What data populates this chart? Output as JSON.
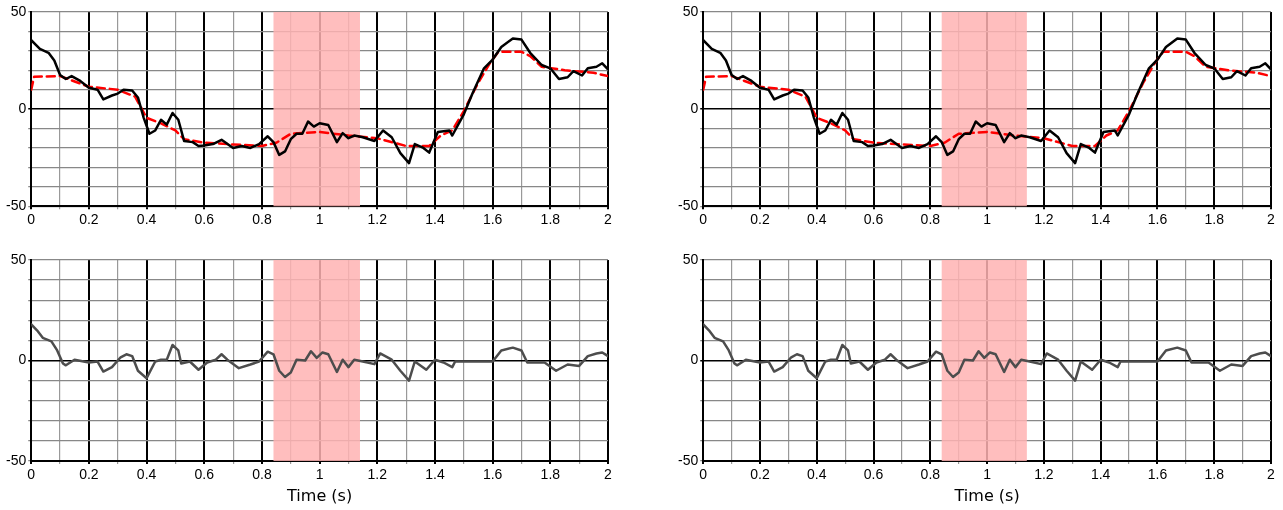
{
  "chart_data": [
    {
      "type": "line",
      "xlim": [
        0,
        2
      ],
      "ylim": [
        -50,
        50
      ],
      "xticks": [
        0,
        {
          "value": 0.1,
          "label": null
        },
        0.2,
        {
          "value": 0.3,
          "label": null
        },
        0.4,
        {
          "value": 0.5,
          "label": null
        },
        0.6,
        {
          "value": 0.7,
          "label": null
        },
        0.8,
        {
          "value": 0.9,
          "label": null
        },
        1,
        {
          "value": 1.1,
          "label": null
        },
        1.2,
        {
          "value": 1.3,
          "label": null
        },
        1.4,
        {
          "value": 1.5,
          "label": null
        },
        1.6,
        {
          "value": 1.7,
          "label": null
        },
        1.8,
        {
          "value": 1.9,
          "label": null
        },
        2
      ],
      "yticks": [
        -50,
        {
          "value": -40,
          "label": null
        },
        {
          "value": -30,
          "label": null
        },
        {
          "value": -20,
          "label": null
        },
        {
          "value": -10,
          "label": null
        },
        0,
        {
          "value": 10,
          "label": null
        },
        {
          "value": 20,
          "label": null
        },
        {
          "value": 30,
          "label": null
        },
        {
          "value": 40,
          "label": null
        },
        50
      ],
      "grid": true,
      "legend": false,
      "marker": "none",
      "bands": [
        {
          "axis": "x",
          "from": 0.84,
          "to": 1.14,
          "color": "#ffb3b3"
        }
      ],
      "series": [
        {
          "color": "#000000",
          "line_style": "solid",
          "x": [
            0,
            0.03,
            0.06,
            0.08,
            0.1,
            0.12,
            0.14,
            0.17,
            0.2,
            0.23,
            0.25,
            0.28,
            0.3,
            0.32,
            0.35,
            0.37,
            0.39,
            0.41,
            0.43,
            0.45,
            0.47,
            0.49,
            0.51,
            0.53,
            0.56,
            0.58,
            0.6,
            0.63,
            0.66,
            0.7,
            0.73,
            0.76,
            0.79,
            0.82,
            0.84,
            0.86,
            0.88,
            0.9,
            0.92,
            0.94,
            0.96,
            0.98,
            1,
            1.03,
            1.06,
            1.08,
            1.1,
            1.12,
            1.15,
            1.19,
            1.22,
            1.25,
            1.28,
            1.31,
            1.33,
            1.36,
            1.38,
            1.41,
            1.45,
            1.46,
            1.5,
            1.53,
            1.57,
            1.6,
            1.63,
            1.67,
            1.7,
            1.73,
            1.77,
            1.8,
            1.83,
            1.86,
            1.88,
            1.91,
            1.93,
            1.96,
            1.98,
            2
          ],
          "values": [
            35.5,
            31,
            29,
            25,
            17.6,
            15.5,
            17,
            14.5,
            11,
            10,
            5,
            7,
            8,
            10,
            9.6,
            6,
            -4.5,
            -12.7,
            -11,
            -5.5,
            -8,
            -2,
            -5.5,
            -16.4,
            -17,
            -19,
            -18.7,
            -18,
            -15.8,
            -20,
            -19,
            -20,
            -18,
            -14,
            -17,
            -23.6,
            -21.8,
            -15.5,
            -12.7,
            -12.7,
            -6.4,
            -9,
            -7.3,
            -8.2,
            -17,
            -12.4,
            -15,
            -13.6,
            -14.5,
            -16.4,
            -11,
            -14.5,
            -22.7,
            -27.8,
            -18,
            -20,
            -22.4,
            -11.8,
            -11,
            -13.6,
            -2.7,
            8,
            21,
            25.5,
            32,
            36.4,
            35.8,
            29,
            22.7,
            21,
            15.5,
            16.4,
            19.5,
            17.3,
            21,
            21.8,
            23.6,
            20.5
          ]
        },
        {
          "color": "#ff0000",
          "line_style": "dashed",
          "x": [
            0,
            0.01,
            0.1,
            0.2,
            0.3,
            0.36,
            0.38,
            0.4,
            0.45,
            0.5,
            0.53,
            0.6,
            0.7,
            0.8,
            0.85,
            0.9,
            1,
            1.1,
            1.2,
            1.3,
            1.38,
            1.42,
            1.46,
            1.5,
            1.55,
            1.59,
            1.62,
            1.7,
            1.73,
            1.77,
            1.85,
            1.95,
            2
          ],
          "values": [
            10,
            16.7,
            17,
            11.5,
            10,
            6.4,
            1,
            -4.5,
            -7.3,
            -11,
            -15.5,
            -17.3,
            -18.2,
            -19,
            -17.3,
            -12.7,
            -11.8,
            -13.6,
            -15,
            -19,
            -19,
            -13.6,
            -11,
            -1,
            13.6,
            23.6,
            29.5,
            29.5,
            27.3,
            21.8,
            20,
            18.7,
            17
          ]
        }
      ]
    },
    {
      "type": "line",
      "xlim": [
        0,
        2
      ],
      "ylim": [
        -50,
        50
      ],
      "xticks": [
        0,
        {
          "value": 0.1,
          "label": null
        },
        0.2,
        {
          "value": 0.3,
          "label": null
        },
        0.4,
        {
          "value": 0.5,
          "label": null
        },
        0.6,
        {
          "value": 0.7,
          "label": null
        },
        0.8,
        {
          "value": 0.9,
          "label": null
        },
        1,
        {
          "value": 1.1,
          "label": null
        },
        1.2,
        {
          "value": 1.3,
          "label": null
        },
        1.4,
        {
          "value": 1.5,
          "label": null
        },
        1.6,
        {
          "value": 1.7,
          "label": null
        },
        1.8,
        {
          "value": 1.9,
          "label": null
        },
        2
      ],
      "yticks": [
        -50,
        {
          "value": -40,
          "label": null
        },
        {
          "value": -30,
          "label": null
        },
        {
          "value": -20,
          "label": null
        },
        {
          "value": -10,
          "label": null
        },
        0,
        {
          "value": 10,
          "label": null
        },
        {
          "value": 20,
          "label": null
        },
        {
          "value": 30,
          "label": null
        },
        {
          "value": 40,
          "label": null
        },
        50
      ],
      "grid": true,
      "legend": false,
      "marker": "none",
      "bands": [
        {
          "axis": "x",
          "from": 0.84,
          "to": 1.14,
          "color": "#ffb3b3"
        }
      ],
      "series": [
        {
          "color": "#000000",
          "line_style": "solid",
          "x": [
            0,
            0.03,
            0.06,
            0.08,
            0.1,
            0.12,
            0.14,
            0.17,
            0.2,
            0.23,
            0.25,
            0.28,
            0.3,
            0.32,
            0.35,
            0.37,
            0.39,
            0.41,
            0.43,
            0.45,
            0.47,
            0.49,
            0.51,
            0.53,
            0.56,
            0.58,
            0.6,
            0.63,
            0.66,
            0.7,
            0.73,
            0.76,
            0.79,
            0.82,
            0.84,
            0.86,
            0.88,
            0.9,
            0.92,
            0.94,
            0.96,
            0.98,
            1,
            1.03,
            1.06,
            1.08,
            1.1,
            1.12,
            1.15,
            1.19,
            1.22,
            1.25,
            1.28,
            1.31,
            1.33,
            1.36,
            1.38,
            1.41,
            1.45,
            1.46,
            1.5,
            1.53,
            1.57,
            1.6,
            1.63,
            1.67,
            1.7,
            1.73,
            1.77,
            1.8,
            1.83,
            1.86,
            1.88,
            1.91,
            1.93,
            1.96,
            1.98,
            2
          ],
          "values": [
            35.5,
            31,
            29,
            25,
            17.6,
            15.5,
            17,
            14.5,
            11,
            10,
            5,
            7,
            8,
            10,
            9.6,
            6,
            -4.5,
            -12.7,
            -11,
            -5.5,
            -8,
            -2,
            -5.5,
            -16.4,
            -17,
            -19,
            -18.7,
            -18,
            -15.8,
            -20,
            -19,
            -20,
            -18,
            -14,
            -17,
            -23.6,
            -21.8,
            -15.5,
            -12.7,
            -12.7,
            -6.4,
            -9,
            -7.3,
            -8.2,
            -17,
            -12.4,
            -15,
            -13.6,
            -14.5,
            -16.4,
            -11,
            -14.5,
            -22.7,
            -27.8,
            -18,
            -20,
            -22.4,
            -11.8,
            -11,
            -13.6,
            -2.7,
            8,
            21,
            25.5,
            32,
            36.4,
            35.8,
            29,
            22.7,
            21,
            15.5,
            16.4,
            19.5,
            17.3,
            21,
            21.8,
            23.6,
            20.5
          ]
        },
        {
          "color": "#ff0000",
          "line_style": "dashed",
          "x": [
            0,
            0.01,
            0.1,
            0.2,
            0.3,
            0.36,
            0.38,
            0.4,
            0.45,
            0.5,
            0.53,
            0.6,
            0.7,
            0.8,
            0.85,
            0.9,
            1,
            1.1,
            1.2,
            1.3,
            1.38,
            1.42,
            1.46,
            1.5,
            1.55,
            1.59,
            1.62,
            1.7,
            1.73,
            1.77,
            1.85,
            1.95,
            2
          ],
          "values": [
            10,
            16.7,
            17,
            11.5,
            10,
            6.4,
            1,
            -4.5,
            -7.3,
            -11,
            -15.5,
            -17.3,
            -18.2,
            -19,
            -17.3,
            -12.7,
            -11.8,
            -13.6,
            -15,
            -19,
            -19,
            -13.6,
            -11,
            -1,
            13.6,
            23.6,
            29.5,
            29.5,
            27.3,
            21.8,
            20,
            18.7,
            17
          ]
        }
      ]
    },
    {
      "type": "line",
      "xlabel": "Time (s)",
      "xlim": [
        0,
        2
      ],
      "ylim": [
        -50,
        50
      ],
      "xticks": [
        0,
        {
          "value": 0.1,
          "label": null
        },
        0.2,
        {
          "value": 0.3,
          "label": null
        },
        0.4,
        {
          "value": 0.5,
          "label": null
        },
        0.6,
        {
          "value": 0.7,
          "label": null
        },
        0.8,
        {
          "value": 0.9,
          "label": null
        },
        1,
        {
          "value": 1.1,
          "label": null
        },
        1.2,
        {
          "value": 1.3,
          "label": null
        },
        1.4,
        {
          "value": 1.5,
          "label": null
        },
        1.6,
        {
          "value": 1.7,
          "label": null
        },
        1.8,
        {
          "value": 1.9,
          "label": null
        },
        2
      ],
      "yticks": [
        -50,
        {
          "value": -40,
          "label": null
        },
        {
          "value": -30,
          "label": null
        },
        {
          "value": -20,
          "label": null
        },
        {
          "value": -10,
          "label": null
        },
        0,
        {
          "value": 10,
          "label": null
        },
        {
          "value": 20,
          "label": null
        },
        {
          "value": 30,
          "label": null
        },
        {
          "value": 40,
          "label": null
        },
        50
      ],
      "grid": true,
      "legend": false,
      "marker": "none",
      "bands": [
        {
          "axis": "x",
          "from": 0.84,
          "to": 1.14,
          "color": "#ffb3b3"
        }
      ],
      "series": [
        {
          "color": "#4d4d4d",
          "line_style": "solid",
          "x": [
            0,
            0.02,
            0.04,
            0.07,
            0.09,
            0.11,
            0.12,
            0.15,
            0.2,
            0.23,
            0.25,
            0.28,
            0.31,
            0.33,
            0.35,
            0.37,
            0.4,
            0.43,
            0.45,
            0.47,
            0.49,
            0.51,
            0.52,
            0.55,
            0.58,
            0.61,
            0.64,
            0.66,
            0.68,
            0.72,
            0.76,
            0.79,
            0.82,
            0.84,
            0.86,
            0.88,
            0.9,
            0.92,
            0.95,
            0.97,
            0.99,
            1.01,
            1.03,
            1.06,
            1.08,
            1.1,
            1.12,
            1.15,
            1.19,
            1.21,
            1.25,
            1.28,
            1.31,
            1.33,
            1.37,
            1.4,
            1.43,
            1.46,
            1.47,
            1.6,
            1.63,
            1.67,
            1.7,
            1.72,
            1.78,
            1.82,
            1.86,
            1.9,
            1.93,
            1.96,
            1.98,
            2
          ],
          "values": [
            18,
            15,
            11.3,
            9.5,
            5,
            -1.5,
            -2.4,
            0.4,
            -1,
            -0.5,
            -5.5,
            -3.3,
            1.6,
            3.1,
            2.2,
            -5.1,
            -8.8,
            -0.5,
            0.4,
            0.4,
            7.7,
            5,
            -1.5,
            -0.5,
            -4.6,
            -1,
            0.4,
            3.1,
            0.4,
            -3.8,
            -2,
            -0.5,
            4.4,
            3.1,
            -5.1,
            -8.2,
            -6,
            0.4,
            0,
            4.6,
            1.3,
            4,
            3.1,
            -5.7,
            0.4,
            -3.3,
            0.4,
            -0.5,
            -1.8,
            3.5,
            0.4,
            -5.1,
            -10,
            -0.5,
            -4.6,
            0.4,
            -1,
            -3.3,
            -0.5,
            -0.5,
            5,
            6.4,
            5,
            -1,
            -1,
            -5.1,
            -2,
            -2.7,
            2.2,
            3.5,
            4,
            2.2
          ]
        }
      ]
    },
    {
      "type": "line",
      "xlabel": "Time (s)",
      "xlim": [
        0,
        2
      ],
      "ylim": [
        -50,
        50
      ],
      "xticks": [
        0,
        {
          "value": 0.1,
          "label": null
        },
        0.2,
        {
          "value": 0.3,
          "label": null
        },
        0.4,
        {
          "value": 0.5,
          "label": null
        },
        0.6,
        {
          "value": 0.7,
          "label": null
        },
        0.8,
        {
          "value": 0.9,
          "label": null
        },
        1,
        {
          "value": 1.1,
          "label": null
        },
        1.2,
        {
          "value": 1.3,
          "label": null
        },
        1.4,
        {
          "value": 1.5,
          "label": null
        },
        1.6,
        {
          "value": 1.7,
          "label": null
        },
        1.8,
        {
          "value": 1.9,
          "label": null
        },
        2
      ],
      "yticks": [
        -50,
        {
          "value": -40,
          "label": null
        },
        {
          "value": -30,
          "label": null
        },
        {
          "value": -20,
          "label": null
        },
        {
          "value": -10,
          "label": null
        },
        0,
        {
          "value": 10,
          "label": null
        },
        {
          "value": 20,
          "label": null
        },
        {
          "value": 30,
          "label": null
        },
        {
          "value": 40,
          "label": null
        },
        50
      ],
      "grid": true,
      "legend": false,
      "marker": "none",
      "bands": [
        {
          "axis": "x",
          "from": 0.84,
          "to": 1.14,
          "color": "#ffb3b3"
        }
      ],
      "series": [
        {
          "color": "#4d4d4d",
          "line_style": "solid",
          "x": [
            0,
            0.02,
            0.04,
            0.07,
            0.09,
            0.11,
            0.12,
            0.15,
            0.2,
            0.23,
            0.25,
            0.28,
            0.31,
            0.33,
            0.35,
            0.37,
            0.4,
            0.43,
            0.45,
            0.47,
            0.49,
            0.51,
            0.52,
            0.55,
            0.58,
            0.61,
            0.64,
            0.66,
            0.68,
            0.72,
            0.76,
            0.79,
            0.82,
            0.84,
            0.86,
            0.88,
            0.9,
            0.92,
            0.95,
            0.97,
            0.99,
            1.01,
            1.03,
            1.06,
            1.08,
            1.1,
            1.12,
            1.15,
            1.19,
            1.21,
            1.25,
            1.28,
            1.31,
            1.33,
            1.37,
            1.4,
            1.43,
            1.46,
            1.47,
            1.6,
            1.63,
            1.67,
            1.7,
            1.72,
            1.78,
            1.82,
            1.86,
            1.9,
            1.93,
            1.96,
            1.98,
            2
          ],
          "values": [
            18,
            15,
            11.3,
            9.5,
            5,
            -1.5,
            -2.4,
            0.4,
            -1,
            -0.5,
            -5.5,
            -3.3,
            1.6,
            3.1,
            2.2,
            -5.1,
            -8.8,
            -0.5,
            0.4,
            0.4,
            7.7,
            5,
            -1.5,
            -0.5,
            -4.6,
            -1,
            0.4,
            3.1,
            0.4,
            -3.8,
            -2,
            -0.5,
            4.4,
            3.1,
            -5.1,
            -8.2,
            -6,
            0.4,
            0,
            4.6,
            1.3,
            4,
            3.1,
            -5.7,
            0.4,
            -3.3,
            0.4,
            -0.5,
            -1.8,
            3.5,
            0.4,
            -5.1,
            -10,
            -0.5,
            -4.6,
            0.4,
            -1,
            -3.3,
            -0.5,
            -0.5,
            5,
            6.4,
            5,
            -1,
            -1,
            -5.1,
            -2,
            -2.7,
            2.2,
            3.5,
            4,
            2.2
          ]
        }
      ]
    }
  ]
}
